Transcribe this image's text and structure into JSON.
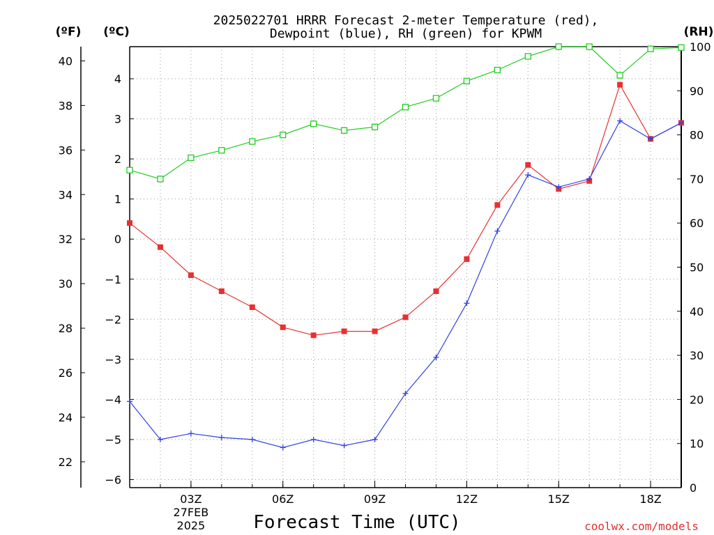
{
  "chart_data": {
    "type": "line",
    "title_line1": "2025022701 HRRR Forecast 2-meter Temperature (red),",
    "title_line2": "Dewpoint (blue), RH (green) for KPWM",
    "unit_left_f": "(ºF)",
    "unit_left_c": "(ºC)",
    "unit_right_rh": "(RH)",
    "xlabel": "Forecast Time (UTC)",
    "credit": "coolwx.com/models",
    "x_hours": [
      1,
      2,
      3,
      4,
      5,
      6,
      7,
      8,
      9,
      10,
      11,
      12,
      13,
      14,
      15,
      16,
      17,
      18,
      19
    ],
    "x_range": [
      1,
      19
    ],
    "x_ticks": [
      {
        "hour": 3,
        "label": "03Z",
        "sub1": "27FEB",
        "sub2": "2025"
      },
      {
        "hour": 6,
        "label": "06Z",
        "sub1": "",
        "sub2": ""
      },
      {
        "hour": 9,
        "label": "09Z",
        "sub1": "",
        "sub2": ""
      },
      {
        "hour": 12,
        "label": "12Z",
        "sub1": "",
        "sub2": ""
      },
      {
        "hour": 15,
        "label": "15Z",
        "sub1": "",
        "sub2": ""
      },
      {
        "hour": 18,
        "label": "18Z",
        "sub1": "",
        "sub2": ""
      }
    ],
    "ylim_c": [
      -6.2,
      4.8
    ],
    "ylim_rh": [
      0,
      100
    ],
    "y_ticks_c": [
      "-6",
      "-5",
      "-4",
      "-3",
      "-2",
      "-1",
      "0",
      "1",
      "2",
      "3",
      "4"
    ],
    "y_ticks_f": [
      "22",
      "24",
      "26",
      "28",
      "30",
      "32",
      "34",
      "36",
      "38",
      "40"
    ],
    "y_ticks_rh": [
      "0",
      "10",
      "20",
      "30",
      "40",
      "50",
      "60",
      "70",
      "80",
      "90",
      "100"
    ],
    "grid": true,
    "series": [
      {
        "key": "temperature",
        "color": "#e83030",
        "marker": "filled-square",
        "axis": "celsius",
        "values": [
          0.4,
          -0.2,
          -0.9,
          -1.3,
          -1.7,
          -2.2,
          -2.4,
          -2.3,
          -2.3,
          -1.95,
          -1.3,
          -0.5,
          0.85,
          1.85,
          1.25,
          1.45,
          3.85,
          2.5,
          2.9
        ]
      },
      {
        "key": "dewpoint",
        "color": "#3040e0",
        "marker": "plus",
        "axis": "celsius",
        "values": [
          -4.05,
          -5.0,
          -4.85,
          -4.95,
          -5.0,
          -5.2,
          -5.0,
          -5.15,
          -5.0,
          -3.85,
          -2.95,
          -1.6,
          0.2,
          1.6,
          1.3,
          1.5,
          2.95,
          2.5,
          2.9
        ]
      },
      {
        "key": "rh",
        "color": "#20cc20",
        "marker": "open-square",
        "axis": "rh",
        "values": [
          72.0,
          70.0,
          74.8,
          76.5,
          78.5,
          80.0,
          82.5,
          81.0,
          81.8,
          86.3,
          88.3,
          92.2,
          94.7,
          97.8,
          100.0,
          100.0,
          93.5,
          99.5,
          99.8
        ]
      }
    ]
  }
}
